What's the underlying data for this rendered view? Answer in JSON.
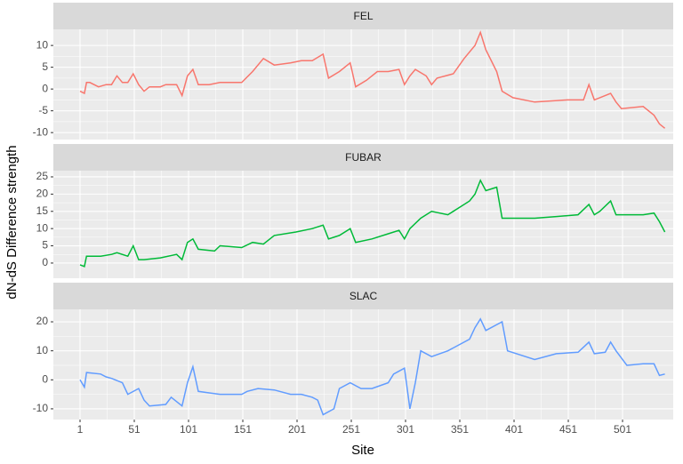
{
  "x_label": "Site",
  "y_label": "dN-dS Difference strength",
  "chart_data": [
    {
      "type": "line",
      "title": "FEL",
      "color": "#F8766D",
      "x": [
        1,
        5,
        7,
        10,
        18,
        25,
        30,
        35,
        40,
        45,
        50,
        55,
        60,
        65,
        75,
        80,
        90,
        95,
        100,
        105,
        110,
        120,
        130,
        150,
        160,
        170,
        180,
        195,
        205,
        215,
        225,
        230,
        240,
        250,
        255,
        265,
        275,
        285,
        295,
        300,
        305,
        310,
        320,
        325,
        330,
        345,
        355,
        365,
        370,
        375,
        385,
        390,
        400,
        420,
        450,
        465,
        470,
        475,
        490,
        495,
        500,
        520,
        530,
        535,
        540
      ],
      "values": [
        -0.5,
        -1,
        1.5,
        1.5,
        0.5,
        1,
        1,
        3,
        1.5,
        1.5,
        3.5,
        1,
        -0.5,
        0.5,
        0.5,
        1,
        1,
        -1.5,
        3,
        4.5,
        1,
        1,
        1.5,
        1.5,
        4,
        7,
        5.5,
        6,
        6.5,
        6.5,
        8,
        2.5,
        4,
        6,
        0.5,
        2,
        4,
        4,
        4.5,
        1,
        3,
        4.5,
        3,
        1,
        2.5,
        3.5,
        7,
        10,
        13,
        9,
        4,
        -0.5,
        -2,
        -3,
        -2.5,
        -2.5,
        1,
        -2.5,
        -1,
        -3,
        -4.5,
        -4,
        -6,
        -8,
        -9
      ],
      "xlim": [
        -23.6,
        547.7
      ],
      "xticks": [
        1,
        51,
        101,
        151,
        201,
        251,
        301,
        351,
        401,
        451,
        501
      ],
      "ylim": [
        -11.6,
        13.7
      ],
      "yticks": [
        -10,
        -5,
        0,
        5,
        10
      ]
    },
    {
      "type": "line",
      "title": "FUBAR",
      "color": "#00BA38",
      "x": [
        1,
        5,
        7,
        20,
        30,
        35,
        45,
        50,
        55,
        60,
        75,
        90,
        95,
        100,
        105,
        110,
        125,
        130,
        150,
        160,
        170,
        180,
        200,
        215,
        225,
        230,
        240,
        250,
        255,
        270,
        285,
        295,
        300,
        305,
        315,
        325,
        340,
        350,
        360,
        365,
        370,
        375,
        385,
        390,
        420,
        440,
        460,
        470,
        475,
        480,
        490,
        495,
        520,
        530,
        535,
        540
      ],
      "values": [
        -0.5,
        -1,
        2,
        2,
        2.5,
        3,
        2,
        5,
        1,
        1,
        1.5,
        2.5,
        1,
        6,
        7,
        4,
        3.5,
        5,
        4.5,
        6,
        5.5,
        8,
        9,
        10,
        11,
        7,
        8,
        10,
        6,
        7,
        8.5,
        9.5,
        7,
        10,
        13,
        15,
        14,
        16,
        18,
        20,
        24,
        21,
        22,
        13,
        13,
        13.5,
        14,
        17,
        14,
        15,
        18,
        14,
        14,
        14.5,
        12,
        9
      ],
      "xlim": [
        -23.6,
        547.7
      ],
      "xticks": [
        1,
        51,
        101,
        151,
        201,
        251,
        301,
        351,
        401,
        451,
        501
      ],
      "ylim": [
        -4.4,
        26.8
      ],
      "yticks": [
        0,
        5,
        10,
        15,
        20,
        25
      ]
    },
    {
      "type": "line",
      "title": "SLAC",
      "color": "#619CFF",
      "x": [
        1,
        5,
        7,
        20,
        25,
        30,
        40,
        45,
        55,
        60,
        65,
        80,
        85,
        95,
        100,
        105,
        110,
        120,
        130,
        150,
        155,
        165,
        180,
        195,
        205,
        215,
        220,
        225,
        235,
        240,
        250,
        260,
        270,
        285,
        290,
        300,
        305,
        310,
        315,
        325,
        340,
        350,
        360,
        365,
        370,
        375,
        390,
        395,
        420,
        440,
        460,
        470,
        475,
        485,
        490,
        495,
        505,
        520,
        530,
        535,
        540
      ],
      "values": [
        0,
        -2.5,
        2.5,
        2,
        1,
        0.5,
        -1,
        -5,
        -3,
        -7,
        -9,
        -8.5,
        -6,
        -9,
        -1,
        4.5,
        -4,
        -4.5,
        -5,
        -5,
        -4,
        -3,
        -3.5,
        -5,
        -5,
        -6,
        -7,
        -12,
        -10,
        -3,
        -1,
        -3,
        -3,
        -1,
        2,
        4,
        -10,
        -1,
        10,
        8,
        10,
        12,
        14,
        18,
        21,
        17,
        20,
        10,
        7,
        9,
        9.5,
        13,
        9,
        9.5,
        13,
        10,
        5,
        5.5,
        5.5,
        1.5,
        2
      ],
      "xlim": [
        -23.6,
        547.7
      ],
      "xticks": [
        1,
        51,
        101,
        151,
        201,
        251,
        301,
        351,
        401,
        451,
        501
      ],
      "ylim": [
        -13.7,
        24.3
      ],
      "yticks": [
        -10,
        0,
        10,
        20
      ]
    }
  ]
}
